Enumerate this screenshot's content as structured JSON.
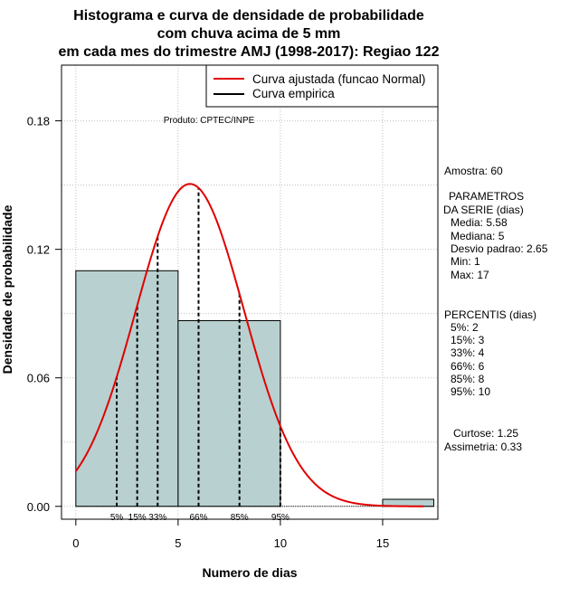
{
  "chart_data": {
    "type": "histogram",
    "title_lines": [
      "Histograma e curva de densidade de probabilidade",
      "com chuva acima de 5 mm",
      "em cada mes do trimestre AMJ (1998-2017): Regiao 122"
    ],
    "xlabel": "Numero de dias",
    "ylabel": "Densidade de probabilidade",
    "xlim": [
      -0.7,
      17.7
    ],
    "ylim": [
      -0.006,
      0.206
    ],
    "x_ticks": [
      0,
      5,
      10,
      15
    ],
    "y_ticks": [
      0.0,
      0.06,
      0.12,
      0.18
    ],
    "x_tick_labels": [
      "0",
      "5",
      "10",
      "15"
    ],
    "y_tick_labels": [
      "0.00",
      "0.06",
      "0.12",
      "0.18"
    ],
    "bins": [
      {
        "from": 0,
        "to": 5,
        "density": 0.11
      },
      {
        "from": 5,
        "to": 10,
        "density": 0.0867
      },
      {
        "from": 10,
        "to": 15,
        "density": 0.0
      },
      {
        "from": 15,
        "to": 17.5,
        "density": 0.0033
      }
    ],
    "normal_fit": {
      "mean": 5.58,
      "sd": 2.65,
      "x_range": [
        0,
        17
      ],
      "color": "#e00000"
    },
    "percentile_lines": [
      {
        "x": 2,
        "label": "5%"
      },
      {
        "x": 3,
        "label": "15%"
      },
      {
        "x": 4,
        "label": "33%"
      },
      {
        "x": 6,
        "label": "66%"
      },
      {
        "x": 8,
        "label": "85%"
      },
      {
        "x": 10,
        "label": "95%"
      }
    ],
    "legend": [
      {
        "label": "Curva ajustada (funcao Normal)",
        "color": "#e00000"
      },
      {
        "label": "Curva empirica",
        "color": "#000000"
      }
    ],
    "product_label": "Produto: CPTEC/INPE",
    "bar_color": "#b8d0d0"
  },
  "side_panel": {
    "amostra": "Amostra: 60",
    "params_title_1": "PARAMETROS",
    "params_title_2": "DA SERIE (dias)",
    "media": "Media: 5.58",
    "mediana": "Mediana: 5",
    "desvio": "Desvio padrao: 2.65",
    "min": "Min: 1",
    "max": "Max: 17",
    "percentis_title": "PERCENTIS (dias)",
    "p5": "5%: 2",
    "p15": "15%: 3",
    "p33": "33%: 4",
    "p66": "66%: 6",
    "p85": "85%: 8",
    "p95": "95%: 10",
    "curtose": "Curtose: 1.25",
    "assimetria": "Assimetria: 0.33"
  }
}
